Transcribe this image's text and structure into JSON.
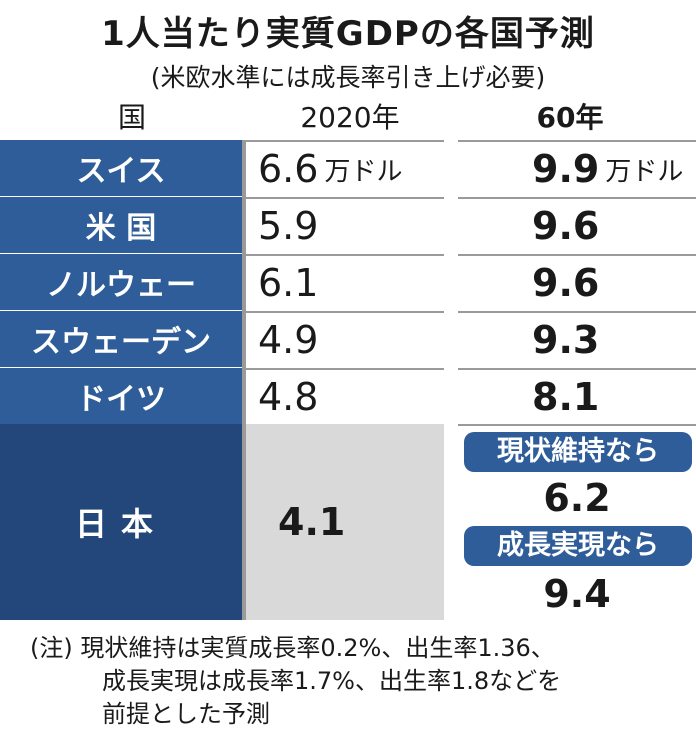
{
  "title": "1人当たり実質GDPの各国予測",
  "subtitle": "(米欧水準には成長率引き上げ必要)",
  "headers": {
    "country": "国",
    "y2020": "2020年",
    "y2060": "60年"
  },
  "rows": [
    {
      "country": "スイス",
      "v2020": "6.6",
      "unit2020": "万ドル",
      "v2060": "9.9",
      "unit2060": "万ドル"
    },
    {
      "country": "米 国",
      "v2020": "5.9",
      "v2060": "9.6"
    },
    {
      "country": "ノルウェー",
      "v2020": "6.1",
      "v2060": "9.6"
    },
    {
      "country": "スウェーデン",
      "v2020": "4.9",
      "v2060": "9.3"
    },
    {
      "country": "ドイツ",
      "v2020": "4.8",
      "v2060": "8.1"
    }
  ],
  "japan": {
    "country": "日本",
    "v2020": "4.1",
    "scenarios": [
      {
        "label": "現状維持なら",
        "value": "6.2"
      },
      {
        "label": "成長実現なら",
        "value": "9.4"
      }
    ]
  },
  "note": {
    "lines": [
      "(注) 現状維持は実質成長率0.2%、出生率1.36、",
      "成長実現は成長率1.7%、出生率1.8などを",
      "前提とした予測"
    ]
  }
}
